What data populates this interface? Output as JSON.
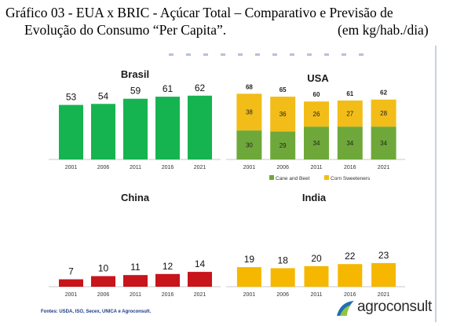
{
  "heading": {
    "line1": "Gráfico 03 - EUA x BRIC - Açúcar Total  – Comparativo e Previsão de",
    "line2": "Evolução do Consumo “Per Capita”.",
    "unit": "(em kg/hab./dia)"
  },
  "source": "Fontes: USDA, ISO, Secex, UNICA e Agroconsult.",
  "logo": {
    "text": "agroconsult",
    "icon": "agroconsult-logo-icon"
  },
  "colors": {
    "brasil": "#16b451",
    "china": "#c8141b",
    "india": "#f5b700",
    "usa_cane": "#6fa83a",
    "usa_corn": "#f2bd18"
  },
  "chart_data": [
    {
      "type": "bar",
      "title": "Brasil",
      "categories": [
        "2001",
        "2006",
        "2011",
        "2016",
        "2021"
      ],
      "values": [
        53,
        54,
        59,
        61,
        62
      ]
    },
    {
      "type": "bar",
      "title": "USA",
      "stacked": true,
      "categories": [
        "2001",
        "2006",
        "2011",
        "2016",
        "2021"
      ],
      "series": [
        {
          "name": "Cane and Beet",
          "values": [
            30,
            29,
            34,
            34,
            34
          ]
        },
        {
          "name": "Corn Sweeteners",
          "values": [
            38,
            36,
            26,
            27,
            28
          ]
        }
      ],
      "totals": [
        68,
        65,
        60,
        61,
        62
      ],
      "legend": "bottom"
    },
    {
      "type": "bar",
      "title": "China",
      "categories": [
        "2001",
        "2006",
        "2011",
        "2016",
        "2021"
      ],
      "values": [
        7,
        10,
        11,
        12,
        14
      ]
    },
    {
      "type": "bar",
      "title": "India",
      "categories": [
        "2001",
        "2006",
        "2011",
        "2016",
        "2021"
      ],
      "values": [
        19,
        18,
        20,
        22,
        23
      ]
    }
  ]
}
